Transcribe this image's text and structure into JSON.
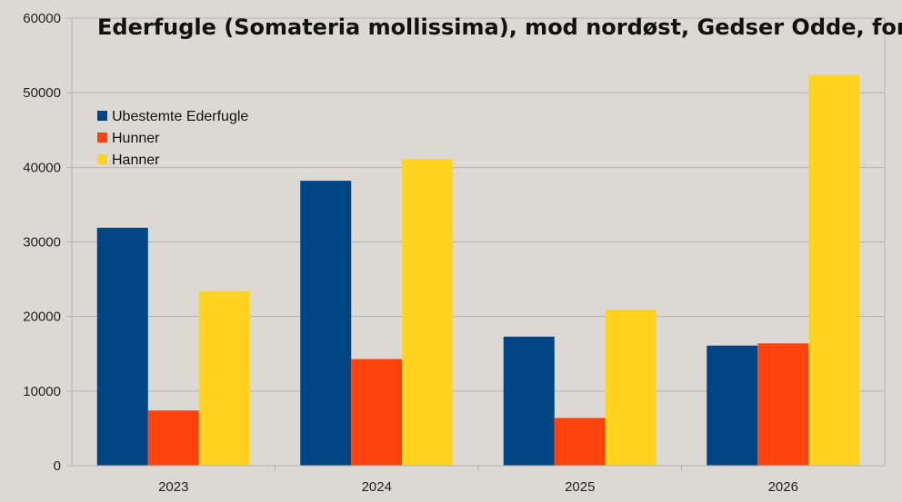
{
  "chart_data": {
    "type": "bar",
    "title": "Ederfugle (Somateria mollissima), mod nordøst, Gedser Odde, forår",
    "xlabel": "",
    "ylabel": "",
    "categories": [
      "2023",
      "2024",
      "2025",
      "2026"
    ],
    "ylim": [
      0,
      60000
    ],
    "yticks": [
      "0",
      "10000",
      "20000",
      "30000",
      "40000",
      "50000",
      "60000"
    ],
    "grid": true,
    "legend_position": "top-left",
    "series": [
      {
        "name": "Ubestemte Ederfugle",
        "color": "#004586",
        "values": [
          31900,
          38200,
          17300,
          16100
        ]
      },
      {
        "name": "Hunner",
        "color": "#ff420e",
        "values": [
          7400,
          14300,
          6400,
          16400
        ]
      },
      {
        "name": "Hanner",
        "color": "#ffd320",
        "values": [
          23400,
          41100,
          20900,
          52400
        ]
      }
    ]
  }
}
